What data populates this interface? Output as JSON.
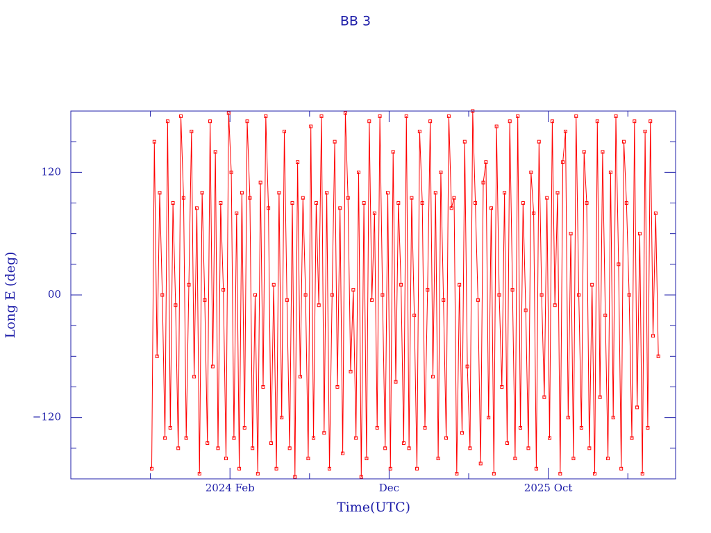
{
  "chart_data": {
    "type": "line",
    "title": "BB 3",
    "x_label": "Time(UTC)",
    "y_label": "Long E (deg)",
    "color": "#ff0000",
    "axis_color": "#1c1ca8",
    "markers": true,
    "grid": false,
    "xlim": [
      "2023-04",
      "2026-06"
    ],
    "xticks": [
      {
        "value": "2024-02",
        "label": "2024 Feb"
      },
      {
        "value": "2024-12",
        "label": "Dec"
      },
      {
        "value": "2025-10",
        "label": "2025 Oct"
      }
    ],
    "xminorticks": [
      "2023-09",
      "2024-07",
      "2025-05",
      "2026-03"
    ],
    "ylim": [
      -180,
      180
    ],
    "yticks": [
      120,
      {
        "value": 0,
        "label": "00"
      },
      {
        "value": -120,
        "label": "−120"
      }
    ],
    "yminorticks": [
      150,
      90,
      60,
      30,
      -30,
      -60,
      -90,
      -150
    ],
    "x": [
      "2023-09",
      "2023-09",
      "2023-09",
      "2023-09",
      "2023-09",
      "2023-09",
      "2023-10",
      "2023-10",
      "2023-10",
      "2023-10",
      "2023-10",
      "2023-10",
      "2023-11",
      "2023-11",
      "2023-11",
      "2023-11",
      "2023-11",
      "2023-11",
      "2023-12",
      "2023-12",
      "2023-12",
      "2023-12",
      "2023-12",
      "2023-12",
      "2024-01",
      "2024-01",
      "2024-01",
      "2024-01",
      "2024-01",
      "2024-01",
      "2024-02",
      "2024-02",
      "2024-02",
      "2024-02",
      "2024-02",
      "2024-02",
      "2024-03",
      "2024-03",
      "2024-03",
      "2024-03",
      "2024-03",
      "2024-03",
      "2024-04",
      "2024-04",
      "2024-04",
      "2024-04",
      "2024-04",
      "2024-04",
      "2024-05",
      "2024-05",
      "2024-05",
      "2024-05",
      "2024-05",
      "2024-05",
      "2024-06",
      "2024-06",
      "2024-06",
      "2024-06",
      "2024-06",
      "2024-06",
      "2024-07",
      "2024-07",
      "2024-07",
      "2024-07",
      "2024-07",
      "2024-07",
      "2024-08",
      "2024-08",
      "2024-08",
      "2024-08",
      "2024-08",
      "2024-08",
      "2024-09",
      "2024-09",
      "2024-09",
      "2024-09",
      "2024-09",
      "2024-09",
      "2024-10",
      "2024-10",
      "2024-10",
      "2024-10",
      "2024-10",
      "2024-10",
      "2024-11",
      "2024-11",
      "2024-11",
      "2024-11",
      "2024-11",
      "2024-11",
      "2024-12",
      "2024-12",
      "2024-12",
      "2024-12",
      "2024-12",
      "2024-12",
      "2025-01",
      "2025-01",
      "2025-01",
      "2025-01",
      "2025-01",
      "2025-01",
      "2025-02",
      "2025-02",
      "2025-02",
      "2025-02",
      "2025-02",
      "2025-02",
      "2025-03",
      "2025-03",
      "2025-03",
      "2025-03",
      "2025-03",
      "2025-03",
      "2025-04",
      "2025-04",
      "2025-04",
      "2025-04",
      "2025-04",
      "2025-04",
      "2025-05",
      "2025-05",
      "2025-05",
      "2025-05",
      "2025-05",
      "2025-05",
      "2025-06",
      "2025-06",
      "2025-06",
      "2025-06",
      "2025-06",
      "2025-06",
      "2025-07",
      "2025-07",
      "2025-07",
      "2025-07",
      "2025-07",
      "2025-07",
      "2025-08",
      "2025-08",
      "2025-08",
      "2025-08",
      "2025-08",
      "2025-08",
      "2025-09",
      "2025-09",
      "2025-09",
      "2025-09",
      "2025-09",
      "2025-09",
      "2025-10",
      "2025-10",
      "2025-10",
      "2025-10",
      "2025-10",
      "2025-10",
      "2025-11",
      "2025-11",
      "2025-11",
      "2025-11",
      "2025-11",
      "2025-11",
      "2025-12",
      "2025-12",
      "2025-12",
      "2025-12",
      "2025-12",
      "2025-12",
      "2026-01",
      "2026-01",
      "2026-01",
      "2026-01",
      "2026-01",
      "2026-01",
      "2026-02",
      "2026-02",
      "2026-02",
      "2026-02",
      "2026-02",
      "2026-02",
      "2026-03",
      "2026-03",
      "2026-03",
      "2026-03",
      "2026-03",
      "2026-03",
      "2026-04",
      "2026-04",
      "2026-04",
      "2026-04",
      "2026-04",
      "2026-04"
    ],
    "values": [
      -170,
      150,
      -60,
      100,
      0,
      -140,
      170,
      -130,
      90,
      -10,
      -150,
      175,
      95,
      -140,
      10,
      160,
      -80,
      85,
      -175,
      100,
      -5,
      -145,
      170,
      -70,
      140,
      -150,
      90,
      5,
      -160,
      178,
      120,
      -140,
      80,
      -170,
      100,
      -130,
      170,
      95,
      -150,
      0,
      -175,
      110,
      -90,
      175,
      85,
      -145,
      10,
      -170,
      100,
      -120,
      160,
      -5,
      -150,
      90,
      -178,
      130,
      -80,
      95,
      0,
      -160,
      165,
      -140,
      90,
      -10,
      175,
      -135,
      100,
      -170,
      0,
      150,
      -90,
      85,
      -155,
      178,
      95,
      -75,
      5,
      -140,
      120,
      -178,
      90,
      -160,
      170,
      -5,
      80,
      -130,
      175,
      0,
      -150,
      100,
      -170,
      140,
      -85,
      90,
      10,
      -145,
      175,
      -150,
      95,
      -20,
      -170,
      160,
      90,
      -130,
      5,
      170,
      -80,
      100,
      -160,
      120,
      -5,
      -140,
      175,
      85,
      95,
      -175,
      10,
      -135,
      150,
      -70,
      -150,
      180,
      90,
      -5,
      -165,
      110,
      130,
      -120,
      85,
      -175,
      165,
      0,
      -90,
      100,
      -145,
      170,
      5,
      -160,
      175,
      -130,
      90,
      -15,
      -150,
      120,
      80,
      -170,
      150,
      0,
      -100,
      95,
      -140,
      170,
      -10,
      100,
      -175,
      130,
      160,
      -120,
      60,
      -160,
      175,
      0,
      -130,
      140,
      90,
      -150,
      10,
      -175,
      170,
      -100,
      140,
      -20,
      -160,
      120,
      -120,
      175,
      30,
      -170,
      150,
      90,
      0,
      -140,
      170,
      -110,
      60,
      -175,
      160,
      -130,
      170,
      -40,
      80,
      -60
    ]
  }
}
